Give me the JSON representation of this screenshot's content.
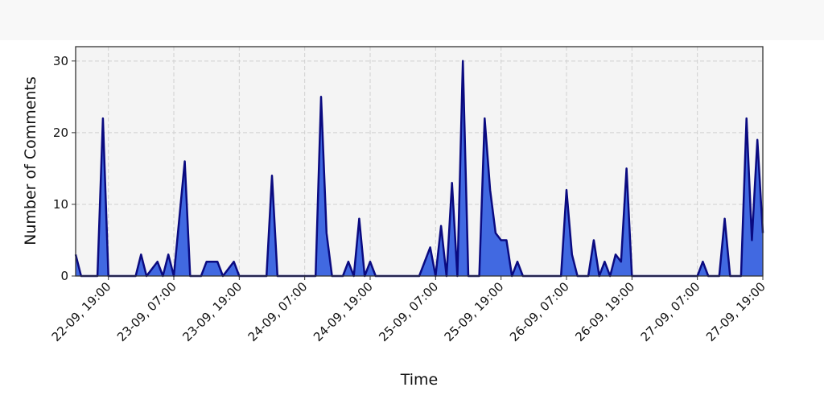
{
  "chart_data": {
    "type": "area",
    "x_label": "Time",
    "y_label": "Number of Comments",
    "x": [
      "22-09, 13:00",
      "22-09, 14:00",
      "22-09, 17:00",
      "22-09, 18:00",
      "22-09, 19:00",
      "23-09, 00:00",
      "23-09, 01:00",
      "23-09, 02:00",
      "23-09, 04:00",
      "23-09, 05:00",
      "23-09, 06:00",
      "23-09, 07:00",
      "23-09, 09:00",
      "23-09, 10:00",
      "23-09, 12:00",
      "23-09, 13:00",
      "23-09, 14:00",
      "23-09, 15:00",
      "23-09, 16:00",
      "23-09, 18:00",
      "23-09, 19:00",
      "24-09, 00:00",
      "24-09, 01:00",
      "24-09, 02:00",
      "24-09, 09:00",
      "24-09, 10:00",
      "24-09, 11:00",
      "24-09, 12:00",
      "24-09, 14:00",
      "24-09, 15:00",
      "24-09, 16:00",
      "24-09, 17:00",
      "24-09, 18:00",
      "24-09, 19:00",
      "24-09, 20:00",
      "25-09, 04:00",
      "25-09, 06:00",
      "25-09, 07:00",
      "25-09, 08:00",
      "25-09, 09:00",
      "25-09, 10:00",
      "25-09, 11:00",
      "25-09, 12:00",
      "25-09, 13:00",
      "25-09, 15:00",
      "25-09, 16:00",
      "25-09, 17:00",
      "25-09, 18:00",
      "25-09, 19:00",
      "25-09, 20:00",
      "25-09, 21:00",
      "25-09, 22:00",
      "25-09, 23:00",
      "26-09, 06:00",
      "26-09, 07:00",
      "26-09, 08:00",
      "26-09, 09:00",
      "26-09, 11:00",
      "26-09, 12:00",
      "26-09, 13:00",
      "26-09, 14:00",
      "26-09, 15:00",
      "26-09, 16:00",
      "26-09, 17:00",
      "26-09, 18:00",
      "26-09, 19:00",
      "27-09, 07:00",
      "27-09, 08:00",
      "27-09, 09:00",
      "27-09, 11:00",
      "27-09, 12:00",
      "27-09, 13:00",
      "27-09, 15:00",
      "27-09, 16:00",
      "27-09, 17:00",
      "27-09, 18:00",
      "27-09, 19:00"
    ],
    "values": [
      3,
      0,
      0,
      22,
      0,
      0,
      3,
      0,
      2,
      0,
      3,
      0,
      16,
      0,
      0,
      2,
      2,
      2,
      0,
      2,
      0,
      0,
      14,
      0,
      0,
      25,
      6,
      0,
      0,
      2,
      0,
      8,
      0,
      2,
      0,
      0,
      4,
      0,
      7,
      0,
      13,
      0,
      30,
      0,
      0,
      22,
      12,
      6,
      5,
      5,
      0,
      2,
      0,
      0,
      12,
      3,
      0,
      0,
      5,
      0,
      2,
      0,
      3,
      2,
      15,
      0,
      0,
      2,
      0,
      0,
      8,
      0,
      0,
      22,
      5,
      19,
      6
    ],
    "fill_color": "#4169e1",
    "line_color": "#0a0a80",
    "xlim": [
      "22-09, 13:00",
      "27-09, 19:00"
    ],
    "xticks": [
      "22-09, 19:00",
      "23-09, 07:00",
      "23-09, 19:00",
      "24-09, 07:00",
      "24-09, 19:00",
      "25-09, 07:00",
      "25-09, 19:00",
      "26-09, 07:00",
      "26-09, 19:00",
      "27-09, 07:00",
      "27-09, 19:00"
    ],
    "ylim": [
      0,
      32
    ],
    "yticks": [
      0,
      10,
      20,
      30
    ],
    "grid": true
  }
}
